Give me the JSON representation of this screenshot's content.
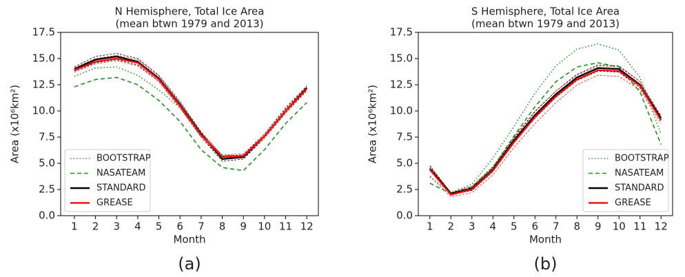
{
  "chart_data": [
    {
      "type": "line",
      "title": "N Hemisphere, Total Ice Area",
      "subtitle": "(mean btwn 1979 and 2013)",
      "x_label": "Month",
      "y_label": "Area (x10⁶km²)",
      "caption": "(a)",
      "x": [
        1,
        2,
        3,
        4,
        5,
        6,
        7,
        8,
        9,
        10,
        11,
        12
      ],
      "xlim": [
        0.35,
        12.55
      ],
      "xticks": [
        1,
        2,
        3,
        4,
        5,
        6,
        7,
        8,
        9,
        10,
        11,
        12
      ],
      "ylim": [
        0,
        17.5
      ],
      "yticks": [
        {
          "value": 0,
          "label": "0.0"
        },
        2.5,
        {
          "value": 5,
          "label": "5.0"
        },
        7.5,
        {
          "value": 10,
          "label": "10.0"
        },
        12.5,
        {
          "value": 15,
          "label": "15.0"
        },
        17.5
      ],
      "legend": "lower left",
      "series": [
        {
          "name": "BOOTSTRAP",
          "color": "#1f8f1f",
          "dash": "dotted",
          "values": [
            13.3,
            14.1,
            14.2,
            13.4,
            12.0,
            10.3,
            7.6,
            5.8,
            5.7,
            7.6,
            9.9,
            12.2
          ]
        },
        {
          "name": "NASATEAM",
          "color": "#1f8f1f",
          "dash": "dashed",
          "values": [
            12.3,
            13.0,
            13.2,
            12.5,
            11.0,
            9.0,
            6.3,
            4.6,
            4.3,
            6.3,
            8.8,
            10.8
          ]
        },
        {
          "name": "STANDARD",
          "color": "#000000",
          "dash": "solid",
          "values": [
            14.0,
            14.9,
            15.2,
            14.7,
            13.1,
            10.6,
            7.8,
            5.4,
            5.6,
            7.6,
            10.0,
            12.2
          ],
          "upper": [
            14.2,
            15.2,
            15.5,
            15.0,
            13.4,
            10.9,
            8.0,
            5.7,
            5.8,
            7.8,
            10.3,
            12.4
          ],
          "lower": [
            13.8,
            14.6,
            14.9,
            14.4,
            12.8,
            10.3,
            7.5,
            5.2,
            5.4,
            7.4,
            9.8,
            12.0
          ]
        },
        {
          "name": "GREASE",
          "color": "#ee1111",
          "dash": "solid",
          "values": [
            13.9,
            14.7,
            15.0,
            14.6,
            13.0,
            10.5,
            7.7,
            5.6,
            5.7,
            7.6,
            10.0,
            12.1
          ],
          "upper": [
            14.1,
            15.0,
            15.3,
            14.9,
            13.3,
            10.8,
            7.9,
            5.8,
            5.9,
            7.8,
            10.2,
            12.3
          ],
          "lower": [
            13.7,
            14.5,
            14.8,
            14.3,
            12.8,
            10.3,
            7.5,
            5.4,
            5.5,
            7.4,
            9.8,
            11.9
          ]
        }
      ]
    },
    {
      "type": "line",
      "title": "S Hemisphere, Total Ice Area",
      "subtitle": "(mean btwn 1979 and 2013)",
      "x_label": "Month",
      "y_label": "Area (x10⁶km²)",
      "caption": "(b)",
      "x": [
        1,
        2,
        3,
        4,
        5,
        6,
        7,
        8,
        9,
        10,
        11,
        12
      ],
      "xlim": [
        0.45,
        12.55
      ],
      "xticks": [
        1,
        2,
        3,
        4,
        5,
        6,
        7,
        8,
        9,
        10,
        11,
        12
      ],
      "ylim": [
        0,
        17.5
      ],
      "yticks": [
        {
          "value": 0,
          "label": "0.0"
        },
        2.5,
        {
          "value": 5,
          "label": "5.0"
        },
        7.5,
        {
          "value": 10,
          "label": "10.0"
        },
        12.5,
        {
          "value": 15,
          "label": "15.0"
        },
        17.5
      ],
      "legend": "lower right",
      "series": [
        {
          "name": "BOOTSTRAP",
          "color": "#1f8f1f",
          "dash": "dotted",
          "values": [
            3.7,
            2.2,
            3.0,
            5.5,
            8.5,
            11.7,
            14.3,
            15.9,
            16.4,
            15.8,
            13.2,
            7.8
          ]
        },
        {
          "name": "NASATEAM",
          "color": "#1f8f1f",
          "dash": "dashed",
          "values": [
            3.1,
            2.1,
            2.7,
            4.6,
            7.6,
            10.4,
            12.8,
            14.2,
            14.6,
            14.2,
            11.8,
            6.8
          ]
        },
        {
          "name": "STANDARD",
          "color": "#000000",
          "dash": "solid",
          "values": [
            4.5,
            2.1,
            2.6,
            4.4,
            7.2,
            9.6,
            11.6,
            13.2,
            14.1,
            14.0,
            12.5,
            9.3
          ],
          "upper": [
            4.7,
            2.2,
            2.8,
            4.6,
            7.4,
            9.9,
            11.9,
            13.5,
            14.4,
            14.3,
            12.8,
            9.5
          ],
          "lower": [
            4.3,
            2.0,
            2.4,
            4.2,
            7.0,
            9.3,
            11.3,
            12.9,
            13.8,
            13.7,
            12.2,
            9.1
          ]
        },
        {
          "name": "GREASE",
          "color": "#ee1111",
          "dash": "solid",
          "values": [
            4.4,
            2.0,
            2.5,
            4.3,
            7.0,
            9.4,
            11.4,
            13.0,
            13.9,
            13.8,
            12.4,
            9.1
          ],
          "upper": [
            4.8,
            2.2,
            2.8,
            4.7,
            7.5,
            10.0,
            11.9,
            13.4,
            14.3,
            14.2,
            12.8,
            9.5
          ],
          "lower": [
            3.8,
            1.8,
            2.2,
            3.9,
            6.5,
            8.8,
            10.8,
            12.5,
            13.4,
            13.3,
            12.0,
            8.8
          ]
        }
      ]
    }
  ]
}
